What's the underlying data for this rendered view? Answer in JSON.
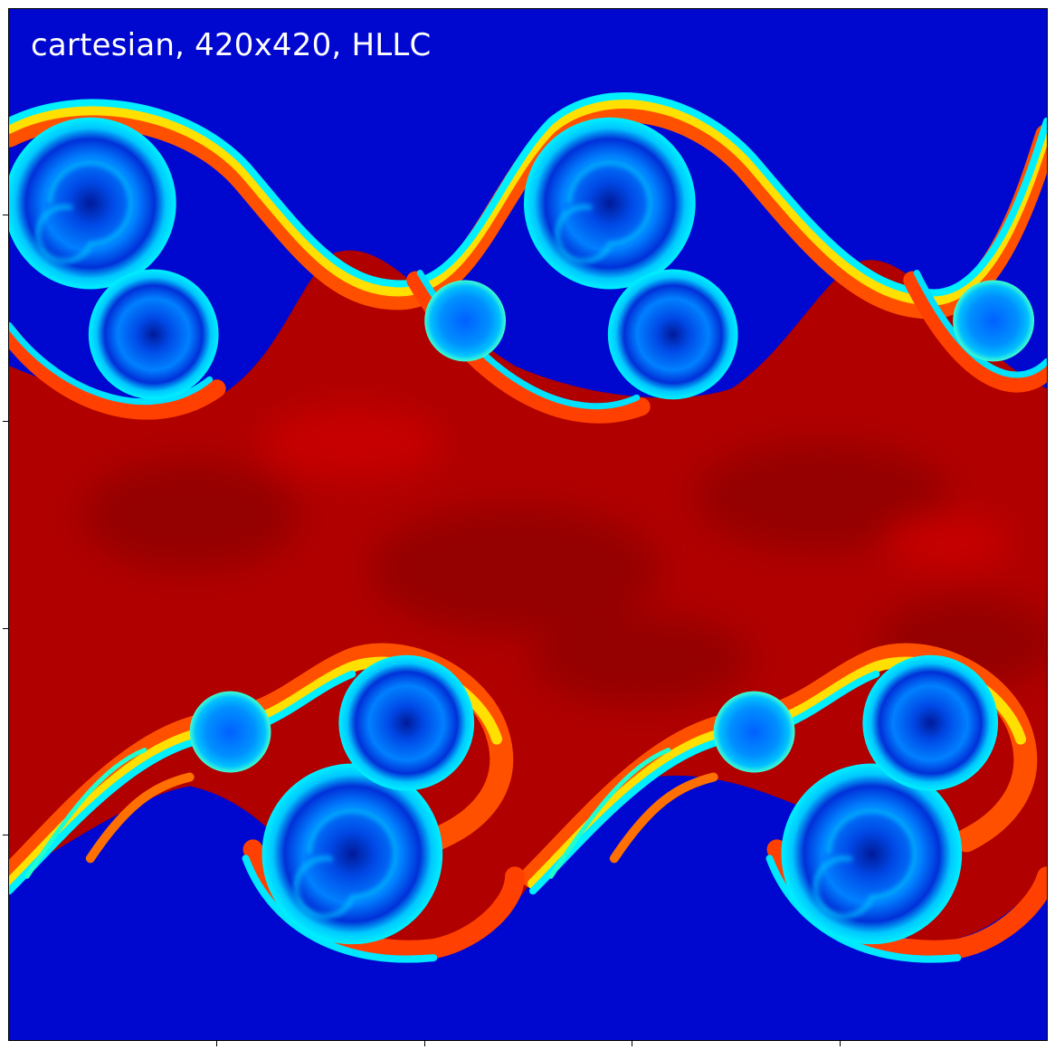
{
  "panel_label": "cartesian, 420x420, HLLC",
  "colormap": "jet",
  "colors": {
    "background_low": "#0000cc",
    "band_high": "#a00000",
    "vortex_core": "#0060ff",
    "interface_cyan": "#00e8ff",
    "interface_yellow": "#ffe000",
    "interface_orange": "#ff6000"
  }
}
